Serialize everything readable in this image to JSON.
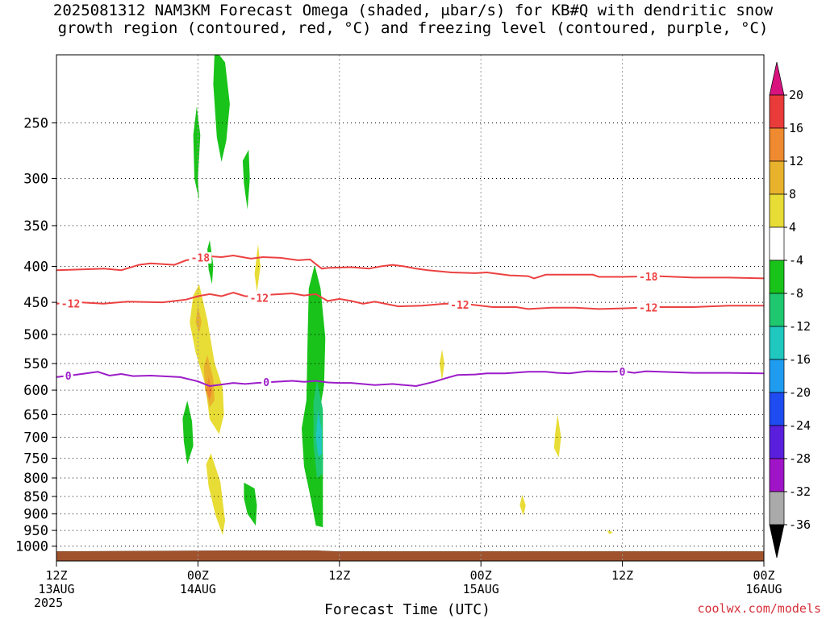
{
  "title": {
    "line1": "2025081312 NAM3KM Forecast Omega (shaded, μbar/s) for KB#Q with dendritic snow",
    "line2": "growth region (contoured, red, °C) and freezing level (contoured, purple, °C)"
  },
  "credit": "coolwx.com/models",
  "chart_data": {
    "type": "heatmap",
    "title": "2025081312 NAM3KM Forecast Omega (shaded, μbar/s) for KB#Q with dendritic snow growth region (contoured, red, °C) and freezing level (contoured, purple, °C)",
    "xlabel": "Forecast Time (UTC)",
    "ylabel": "",
    "y_scale": "log-pressure (inverted)",
    "x_range_hours": [
      0,
      60
    ],
    "y_range_hpa": [
      1050,
      200
    ],
    "x_ticks": [
      {
        "hour": 0,
        "line1": "12Z",
        "line2": "13AUG",
        "line3": "2025"
      },
      {
        "hour": 12,
        "line1": "00Z",
        "line2": "14AUG",
        "line3": ""
      },
      {
        "hour": 24,
        "line1": "12Z",
        "line2": "",
        "line3": ""
      },
      {
        "hour": 36,
        "line1": "00Z",
        "line2": "15AUG",
        "line3": ""
      },
      {
        "hour": 48,
        "line1": "12Z",
        "line2": "",
        "line3": ""
      },
      {
        "hour": 60,
        "line1": "00Z",
        "line2": "16AUG",
        "line3": ""
      }
    ],
    "y_ticks": [
      "250",
      "300",
      "350",
      "400",
      "450",
      "500",
      "550",
      "600",
      "650",
      "700",
      "750",
      "800",
      "850",
      "900",
      "950",
      "1000"
    ],
    "grid": true,
    "colorbar": {
      "labels": [
        "20",
        "16",
        "12",
        "8",
        "4",
        "-4",
        "-8",
        "-12",
        "-16",
        "-20",
        "-24",
        "-28",
        "-32",
        "-36"
      ],
      "colors": [
        "#d8137e",
        "#ea3b3b",
        "#f08a30",
        "#e9b22c",
        "#e8dc36",
        "#ffffff",
        "#19c319",
        "#1fc76f",
        "#1fc7bf",
        "#1f9cf0",
        "#1f4cf0",
        "#5a1fdc",
        "#a014c8",
        "#aaaaaa",
        "#000000"
      ]
    },
    "omega_areas": [
      {
        "color": "#19c319",
        "points": [
          [
            12.2,
            260
          ],
          [
            12.0,
            300
          ],
          [
            12.1,
            322
          ],
          [
            11.7,
            300
          ],
          [
            11.6,
            260
          ],
          [
            11.9,
            237
          ]
        ]
      },
      {
        "color": "#19c319",
        "points": [
          [
            13.8,
            200
          ],
          [
            14.3,
            205
          ],
          [
            14.7,
            235
          ],
          [
            14.4,
            265
          ],
          [
            14.0,
            284
          ],
          [
            13.6,
            262
          ],
          [
            13.3,
            220
          ],
          [
            13.4,
            200
          ]
        ]
      },
      {
        "color": "#19c319",
        "points": [
          [
            16.3,
            273
          ],
          [
            16.4,
            300
          ],
          [
            16.2,
            332
          ],
          [
            15.9,
            305
          ],
          [
            15.8,
            283
          ]
        ]
      },
      {
        "color": "#19c319",
        "points": [
          [
            13.0,
            367
          ],
          [
            13.3,
            398
          ],
          [
            13.2,
            424
          ],
          [
            12.9,
            404
          ],
          [
            12.8,
            378
          ]
        ]
      },
      {
        "color": "#e8dc36",
        "points": [
          [
            17.1,
            372
          ],
          [
            17.3,
            400
          ],
          [
            17.0,
            435
          ],
          [
            16.8,
            410
          ]
        ]
      },
      {
        "color": "#e8dc36",
        "points": [
          [
            12.1,
            424
          ],
          [
            12.8,
            477
          ],
          [
            13.4,
            548
          ],
          [
            14.1,
            595
          ],
          [
            14.2,
            650
          ],
          [
            13.8,
            693
          ],
          [
            13.0,
            660
          ],
          [
            12.6,
            588
          ],
          [
            11.8,
            530
          ],
          [
            11.3,
            481
          ],
          [
            11.6,
            440
          ]
        ]
      },
      {
        "color": "#e9b22c",
        "points": [
          [
            12.8,
            535
          ],
          [
            13.3,
            578
          ],
          [
            13.4,
            620
          ],
          [
            13.0,
            635
          ],
          [
            12.6,
            598
          ],
          [
            12.5,
            555
          ]
        ]
      },
      {
        "color": "#f08a30",
        "points": [
          [
            12.9,
            575
          ],
          [
            13.2,
            600
          ],
          [
            13.0,
            620
          ],
          [
            12.7,
            600
          ]
        ]
      },
      {
        "color": "#e9b22c",
        "points": [
          [
            12.0,
            455
          ],
          [
            12.3,
            480
          ],
          [
            12.1,
            498
          ],
          [
            11.8,
            480
          ]
        ]
      },
      {
        "color": "#e8dc36",
        "points": [
          [
            13.1,
            738
          ],
          [
            13.9,
            810
          ],
          [
            14.3,
            920
          ],
          [
            14.1,
            965
          ],
          [
            13.5,
            905
          ],
          [
            12.9,
            822
          ],
          [
            12.7,
            765
          ]
        ]
      },
      {
        "color": "#19c319",
        "points": [
          [
            11.1,
            621
          ],
          [
            11.5,
            665
          ],
          [
            11.6,
            720
          ],
          [
            11.1,
            765
          ],
          [
            10.8,
            710
          ],
          [
            10.7,
            658
          ]
        ]
      },
      {
        "color": "#19c319",
        "points": [
          [
            15.9,
            812
          ],
          [
            16.8,
            828
          ],
          [
            17.0,
            875
          ],
          [
            16.9,
            935
          ],
          [
            16.2,
            900
          ],
          [
            15.9,
            855
          ]
        ]
      },
      {
        "color": "#19c319",
        "points": [
          [
            21.9,
            398
          ],
          [
            22.4,
            430
          ],
          [
            22.8,
            505
          ],
          [
            22.7,
            590
          ],
          [
            22.3,
            645
          ],
          [
            22.6,
            740
          ],
          [
            22.6,
            940
          ],
          [
            22.0,
            935
          ],
          [
            21.6,
            860
          ],
          [
            21.0,
            770
          ],
          [
            20.8,
            680
          ],
          [
            21.2,
            620
          ],
          [
            21.3,
            510
          ],
          [
            21.4,
            430
          ]
        ]
      },
      {
        "color": "#1fc76f",
        "points": [
          [
            22.1,
            580
          ],
          [
            22.6,
            640
          ],
          [
            22.6,
            790
          ],
          [
            22.1,
            800
          ],
          [
            21.8,
            720
          ],
          [
            21.8,
            625
          ]
        ]
      },
      {
        "color": "#1fc7bf",
        "points": [
          [
            22.2,
            640
          ],
          [
            22.5,
            685
          ],
          [
            22.5,
            740
          ],
          [
            22.2,
            745
          ],
          [
            22.0,
            700
          ]
        ]
      },
      {
        "color": "#e8dc36",
        "points": [
          [
            32.7,
            525
          ],
          [
            32.9,
            550
          ],
          [
            32.7,
            582
          ],
          [
            32.5,
            550
          ]
        ]
      },
      {
        "color": "#e8dc36",
        "points": [
          [
            42.5,
            650
          ],
          [
            42.8,
            700
          ],
          [
            42.6,
            748
          ],
          [
            42.2,
            725
          ],
          [
            42.3,
            690
          ]
        ]
      },
      {
        "color": "#e8dc36",
        "points": [
          [
            39.5,
            845
          ],
          [
            39.8,
            875
          ],
          [
            39.6,
            905
          ],
          [
            39.3,
            875
          ]
        ]
      },
      {
        "color": "#e8dc36",
        "points": [
          [
            46.7,
            950
          ],
          [
            47.2,
            955
          ],
          [
            46.9,
            962
          ]
        ]
      }
    ],
    "contours": [
      {
        "name": "-18",
        "color": "#ec4141",
        "label_positions": [
          [
            12.2,
            389
          ],
          [
            50.2,
            414
          ]
        ],
        "points": [
          [
            0,
            405
          ],
          [
            4,
            403
          ],
          [
            5.5,
            405
          ],
          [
            7,
            398
          ],
          [
            8,
            396
          ],
          [
            10,
            398
          ],
          [
            11,
            392
          ],
          [
            12,
            390
          ],
          [
            13,
            387
          ],
          [
            14,
            388
          ],
          [
            15,
            386
          ],
          [
            16.5,
            390
          ],
          [
            17.5,
            388
          ],
          [
            19,
            389
          ],
          [
            20.5,
            392
          ],
          [
            21.5,
            391
          ],
          [
            22,
            397
          ],
          [
            22.5,
            403
          ],
          [
            23,
            402
          ],
          [
            25,
            401
          ],
          [
            26.5,
            403
          ],
          [
            27.5,
            400
          ],
          [
            28.5,
            398
          ],
          [
            29.5,
            400
          ],
          [
            30.5,
            403
          ],
          [
            31.5,
            405
          ],
          [
            33.5,
            408
          ],
          [
            35.5,
            409
          ],
          [
            36.5,
            408
          ],
          [
            37.5,
            410
          ],
          [
            38.5,
            412
          ],
          [
            40,
            413
          ],
          [
            40.5,
            416
          ],
          [
            41.5,
            411
          ],
          [
            45.5,
            411
          ],
          [
            46,
            414
          ],
          [
            48,
            414
          ],
          [
            51,
            413
          ],
          [
            54,
            415
          ],
          [
            57,
            415
          ],
          [
            60,
            416
          ]
        ]
      },
      {
        "name": "-12",
        "color": "#ec4141",
        "label_positions": [
          [
            1.2,
            452
          ],
          [
            17.2,
            444
          ],
          [
            34.2,
            454
          ],
          [
            50.2,
            458
          ]
        ],
        "points": [
          [
            0,
            452
          ],
          [
            2,
            450
          ],
          [
            4,
            452
          ],
          [
            6,
            449
          ],
          [
            9,
            450
          ],
          [
            11,
            446
          ],
          [
            12,
            441
          ],
          [
            13,
            438
          ],
          [
            14,
            441
          ],
          [
            15,
            436
          ],
          [
            16,
            441
          ],
          [
            17,
            441
          ],
          [
            18,
            439
          ],
          [
            19,
            438
          ],
          [
            20,
            437
          ],
          [
            21,
            440
          ],
          [
            22,
            438
          ],
          [
            23,
            448
          ],
          [
            24,
            445
          ],
          [
            25,
            448
          ],
          [
            26,
            452
          ],
          [
            27,
            449
          ],
          [
            29,
            456
          ],
          [
            31,
            455
          ],
          [
            33,
            452
          ],
          [
            35,
            453
          ],
          [
            37,
            457
          ],
          [
            39,
            457
          ],
          [
            40,
            460
          ],
          [
            42,
            458
          ],
          [
            44,
            458
          ],
          [
            46,
            460
          ],
          [
            48,
            459
          ],
          [
            51,
            457
          ],
          [
            54,
            457
          ],
          [
            57,
            455
          ],
          [
            60,
            455
          ]
        ]
      },
      {
        "name": "0",
        "color": "#9c1cc8",
        "label_positions": [
          [
            1.0,
            573
          ],
          [
            17.8,
            585
          ],
          [
            48.0,
            565
          ]
        ],
        "points": [
          [
            0,
            575
          ],
          [
            1.5,
            571
          ],
          [
            3.5,
            565
          ],
          [
            4.5,
            572
          ],
          [
            5.5,
            569
          ],
          [
            6.5,
            573
          ],
          [
            8,
            572
          ],
          [
            10.5,
            575
          ],
          [
            12,
            583
          ],
          [
            13,
            592
          ],
          [
            14,
            589
          ],
          [
            15,
            586
          ],
          [
            16,
            588
          ],
          [
            17,
            586
          ],
          [
            18.5,
            584
          ],
          [
            20,
            582
          ],
          [
            21,
            584
          ],
          [
            22,
            582
          ],
          [
            23,
            585
          ],
          [
            24,
            586
          ],
          [
            25,
            586
          ],
          [
            27,
            590
          ],
          [
            28.5,
            588
          ],
          [
            29.5,
            590
          ],
          [
            30.5,
            592
          ],
          [
            32,
            584
          ],
          [
            33,
            577
          ],
          [
            34,
            571
          ],
          [
            35.5,
            570
          ],
          [
            36.5,
            568
          ],
          [
            38,
            568
          ],
          [
            40,
            565
          ],
          [
            41.5,
            565
          ],
          [
            42.5,
            567
          ],
          [
            43.5,
            568
          ],
          [
            45,
            564
          ],
          [
            47,
            565
          ],
          [
            48,
            564
          ],
          [
            49,
            567
          ],
          [
            50,
            564
          ],
          [
            54,
            567
          ],
          [
            57,
            567
          ],
          [
            60,
            568
          ]
        ]
      }
    ],
    "terrain": {
      "color": "#a0522d",
      "segments": [
        [
          0,
          1,
          1050
        ],
        [
          15.5,
          1,
          1050
        ]
      ],
      "top_hpa": [
        [
          0,
          1018
        ],
        [
          15.5,
          1015
        ],
        [
          22.0,
          1015
        ],
        [
          23.8,
          1018
        ],
        [
          60,
          1018
        ]
      ]
    }
  }
}
